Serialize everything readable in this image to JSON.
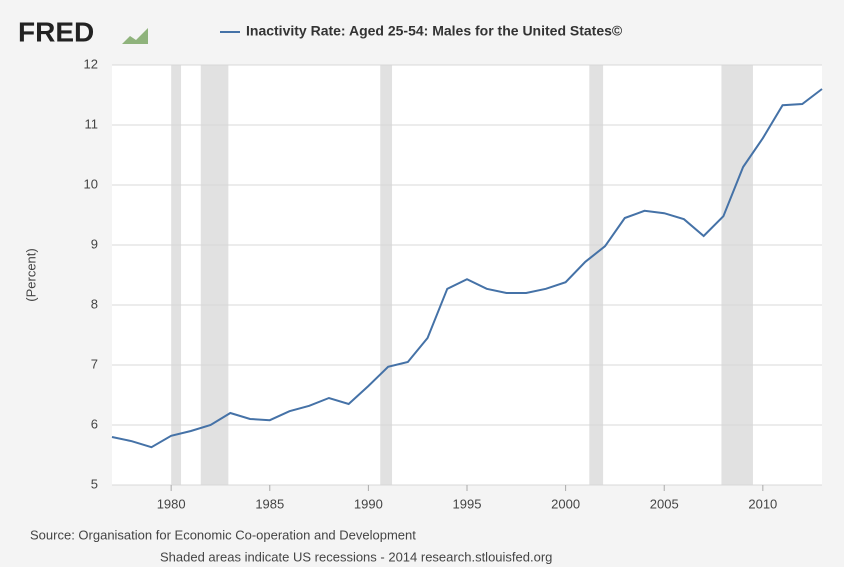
{
  "chart_data": {
    "type": "line",
    "logo": "FRED",
    "ylabel": "(Percent)",
    "source": "Source: Organisation for Economic Co-operation and Development",
    "note": "Shaded areas indicate US recessions - 2014 research.stlouisfed.org",
    "x": [
      1977,
      1978,
      1979,
      1980,
      1981,
      1982,
      1983,
      1984,
      1985,
      1986,
      1987,
      1988,
      1989,
      1990,
      1991,
      1992,
      1993,
      1994,
      1995,
      1996,
      1997,
      1998,
      1999,
      2000,
      2001,
      2002,
      2003,
      2004,
      2005,
      2006,
      2007,
      2008,
      2009,
      2010,
      2011,
      2012,
      2013
    ],
    "series": [
      {
        "name": "Inactivity Rate: Aged 25-54: Males for the United States©",
        "color": "#4572a7",
        "values": [
          5.8,
          5.73,
          5.63,
          5.82,
          5.9,
          6.0,
          6.2,
          6.1,
          6.08,
          6.23,
          6.32,
          6.45,
          6.35,
          6.65,
          6.97,
          7.05,
          7.45,
          8.27,
          8.43,
          8.27,
          8.2,
          8.2,
          8.27,
          8.38,
          8.72,
          8.98,
          9.45,
          9.57,
          9.53,
          9.43,
          9.15,
          9.48,
          10.3,
          10.78,
          11.33,
          11.35,
          11.6
        ]
      }
    ],
    "recessions": [
      [
        1980.0,
        1980.5
      ],
      [
        1981.5,
        1982.9
      ],
      [
        1990.6,
        1991.2
      ],
      [
        2001.2,
        2001.9
      ],
      [
        2007.9,
        2009.5
      ]
    ],
    "recession_color": "#e1e1e1",
    "xlim": [
      1977,
      2013
    ],
    "xticks": [
      1980,
      1985,
      1990,
      1995,
      2000,
      2005,
      2010
    ],
    "ylim": [
      5,
      12
    ],
    "yticks": [
      5,
      6,
      7,
      8,
      9,
      10,
      11,
      12
    ],
    "grid": true
  }
}
